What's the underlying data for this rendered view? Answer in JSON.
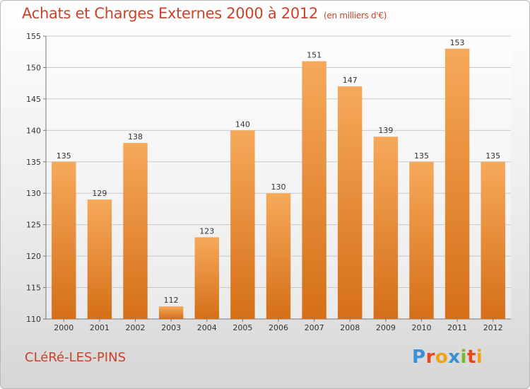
{
  "title": "Achats et Charges Externes 2000 à 2012",
  "subtitle": "(en milliers d'€)",
  "commune": "CLéRé-LES-PINS",
  "logo": {
    "letters": [
      {
        "char": "P",
        "color": "#3a8fd6"
      },
      {
        "char": "r",
        "color": "#e8461f"
      },
      {
        "char": "o",
        "color": "#f0a31a"
      },
      {
        "char": "x",
        "color": "#3a8fd6"
      },
      {
        "char": "i",
        "color": "#7bb932"
      },
      {
        "char": "t",
        "color": "#e8461f"
      },
      {
        "char": "i",
        "color": "#f0a31a"
      }
    ]
  },
  "colors": {
    "title": "#c8442b",
    "bar_top": "#f6a95a",
    "bar_bottom": "#d56f18",
    "grid": "#c8c8c8"
  },
  "chart_data": {
    "type": "bar",
    "categories": [
      "2000",
      "2001",
      "2002",
      "2003",
      "2004",
      "2005",
      "2006",
      "2007",
      "2008",
      "2009",
      "2010",
      "2011",
      "2012"
    ],
    "values": [
      135,
      129,
      138,
      112,
      123,
      140,
      130,
      151,
      147,
      139,
      135,
      153,
      135
    ],
    "ylim": [
      110,
      155
    ],
    "yticks": [
      110,
      115,
      120,
      125,
      130,
      135,
      140,
      145,
      150,
      155
    ],
    "grid": true,
    "data_labels": true
  }
}
